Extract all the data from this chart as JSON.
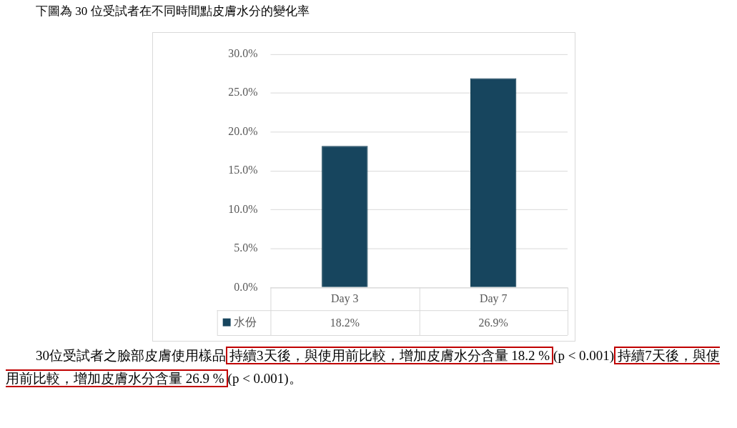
{
  "chart_data": {
    "type": "bar",
    "title": "下圖為 30 位受試者在不同時間點皮膚水分的變化率",
    "categories": [
      "Day 3",
      "Day 7"
    ],
    "series": [
      {
        "name": "水份",
        "color": "#17455e",
        "values": [
          18.2,
          26.9
        ],
        "value_labels": [
          "18.2%",
          "26.9%"
        ]
      }
    ],
    "ylim": [
      0,
      30
    ],
    "yticks": [
      {
        "value": 0,
        "label": "0.0%"
      },
      {
        "value": 5,
        "label": "5.0%"
      },
      {
        "value": 10,
        "label": "10.0%"
      },
      {
        "value": 15,
        "label": "15.0%"
      },
      {
        "value": 20,
        "label": "20.0%"
      },
      {
        "value": 25,
        "label": "25.0%"
      },
      {
        "value": 30,
        "label": "30.0%"
      }
    ],
    "grid": "y",
    "annotations": [
      "30位受試者之臉部皮膚使用樣品",
      "持續3天後，與使用前比較，增加皮膚水分含量 18.2 %",
      "(p < 0.001)",
      "持續7天後，與使用前比較，增加皮膚水分含量 26.9 %",
      "(p < 0.001)。"
    ]
  }
}
